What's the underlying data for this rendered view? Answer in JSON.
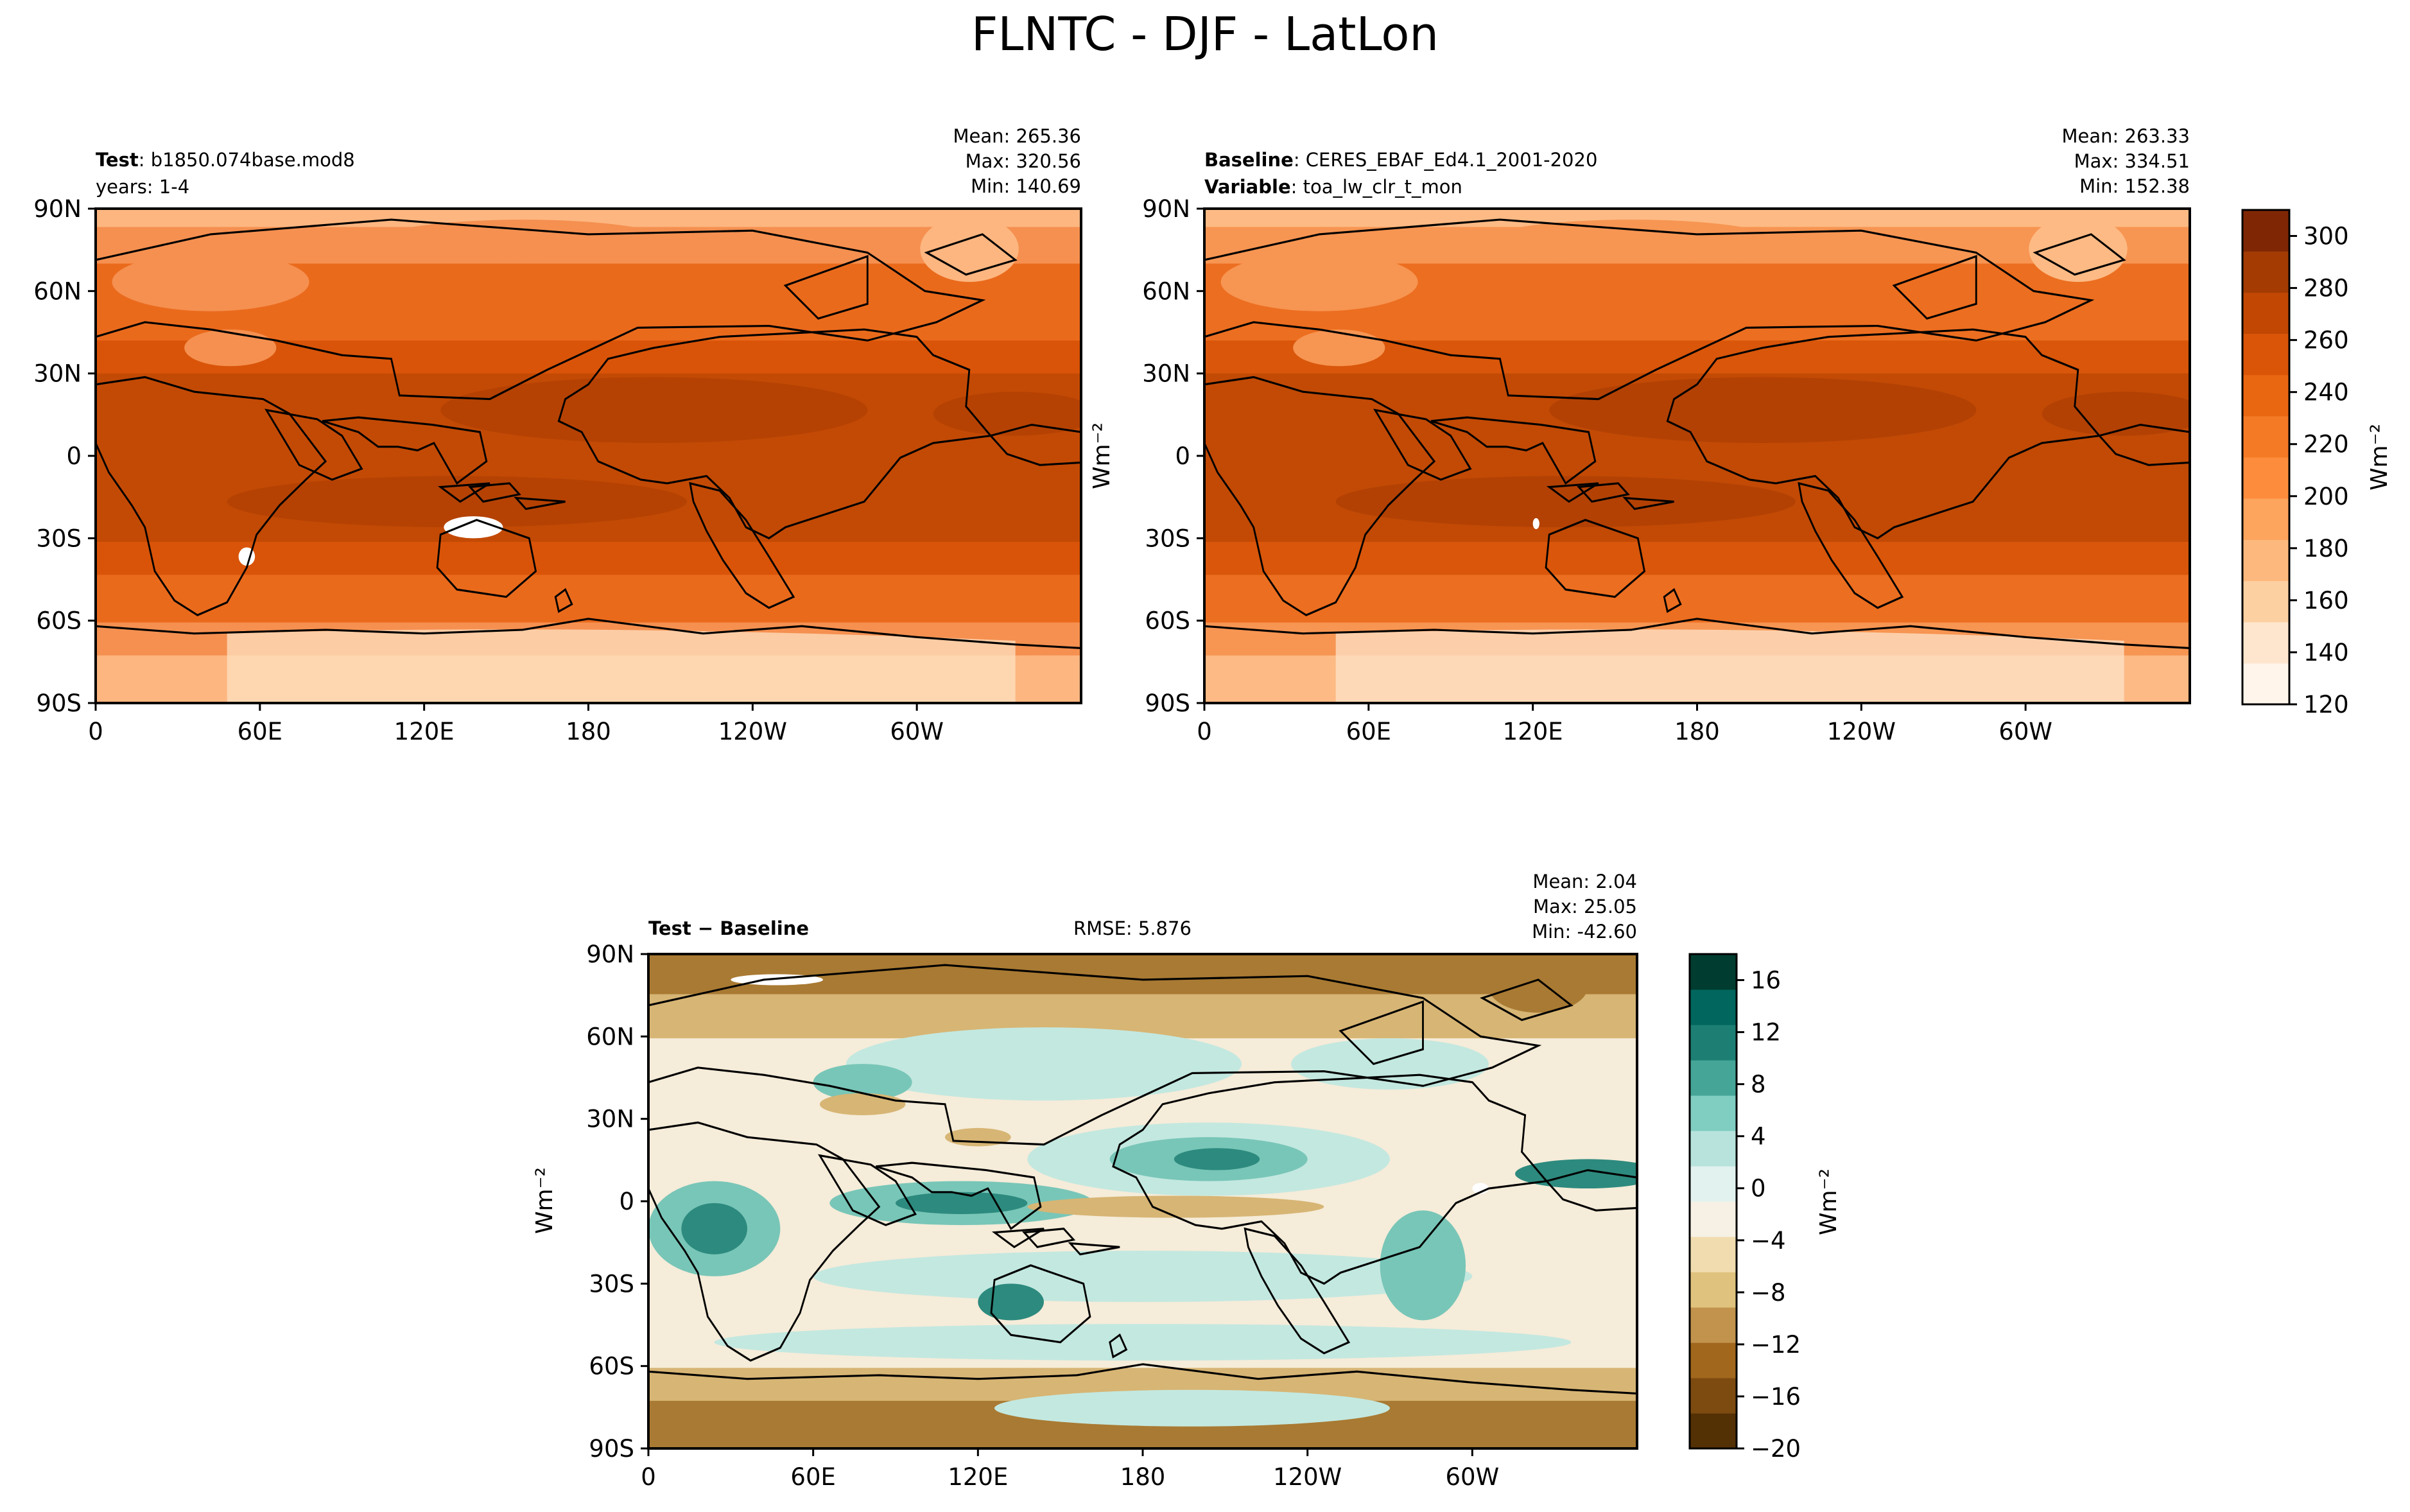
{
  "figure": {
    "title": "FLNTC - DJF - LatLon"
  },
  "lat_ticks": [
    "90N",
    "60N",
    "30N",
    "0",
    "30S",
    "60S",
    "90S"
  ],
  "lon_ticks": [
    "0",
    "60E",
    "120E",
    "180",
    "120W",
    "60W"
  ],
  "panels": {
    "test": {
      "label_bold": "Test",
      "label_text": ": b1850.074base.mod8",
      "line2_text": "years: 1-4",
      "stats": [
        "Mean: 265.36",
        "Max: 320.56",
        "Min: 140.69"
      ]
    },
    "baseline": {
      "label_bold": "Baseline",
      "label_text": ": CERES_EBAF_Ed4.1_2001-2020",
      "line2_bold": "Variable",
      "line2_text": ": toa_lw_clr_t_mon",
      "stats": [
        "Mean: 263.33",
        "Max: 334.51",
        "Min: 152.38"
      ],
      "ylabel": "Wm⁻²"
    },
    "diff": {
      "label": "Test − Baseline",
      "rmse": "RMSE: 5.876",
      "stats": [
        "Mean:  2.04",
        "Max: 25.05",
        "Min: -42.60"
      ],
      "ylabel": "Wm⁻²"
    }
  },
  "colorbar_top": {
    "unit": "Wm⁻²",
    "range": [
      120,
      310
    ],
    "ticks": [
      "120",
      "140",
      "160",
      "180",
      "200",
      "220",
      "240",
      "260",
      "280",
      "300"
    ],
    "tick_values": [
      120,
      140,
      160,
      180,
      200,
      220,
      240,
      260,
      280,
      300
    ],
    "colors": [
      "#fff5eb",
      "#fee6ce",
      "#fdd0a2",
      "#fdb97d",
      "#fda45d",
      "#fd8d3c",
      "#f57a25",
      "#ea6712",
      "#da5508",
      "#c14702",
      "#a33b03",
      "#7f2704"
    ]
  },
  "colorbar_bottom": {
    "unit": "Wm⁻²",
    "range": [
      -20,
      18
    ],
    "ticks": [
      "16",
      "12",
      "8",
      "4",
      "0",
      "−4",
      "−8",
      "−12",
      "−16",
      "−20"
    ],
    "tick_values": [
      16,
      12,
      8,
      4,
      0,
      -4,
      -8,
      -12,
      -16,
      -20
    ],
    "colors": [
      "#543005",
      "#7d4a0f",
      "#a0671d",
      "#c2934d",
      "#dfc27d",
      "#f0dcae",
      "#f6f1e4",
      "#e2f2ef",
      "#b8e3dc",
      "#80cdc1",
      "#45a597",
      "#1d7f74",
      "#01665e",
      "#003c30"
    ]
  },
  "fields": {
    "test_colors": [
      "#fee0c0",
      "#fdb680",
      "#f59050",
      "#ea6a1c",
      "#d95409",
      "#c34a05",
      "#b54203",
      "#ffffff"
    ],
    "baseline_colors": [
      "#fde3c8",
      "#fdba84",
      "#f79552",
      "#ec6e20",
      "#d9560a",
      "#c24a05",
      "#b34104",
      "#ffffff"
    ],
    "diff_colors": [
      "#a97a33",
      "#d7b574",
      "#f5ecd9",
      "#c3e8e0",
      "#78c6b8",
      "#2d8a7e",
      "#01665e",
      "#ffffff"
    ],
    "coast_color": "#000000"
  }
}
